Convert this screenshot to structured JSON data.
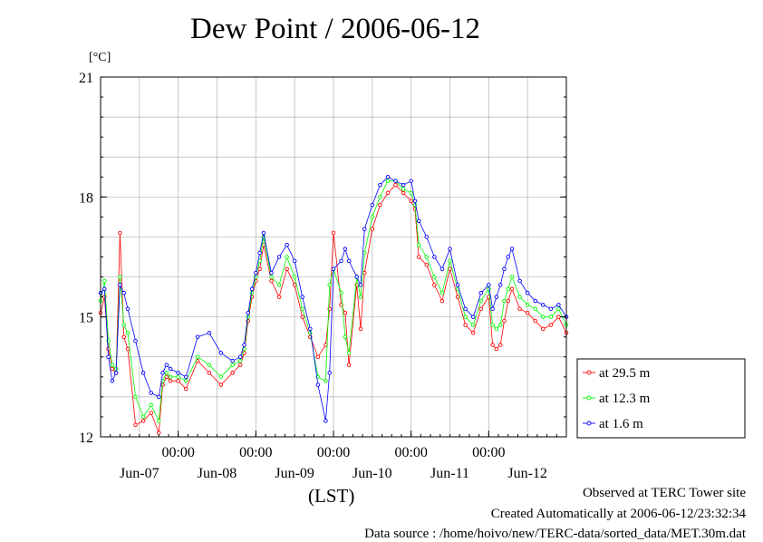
{
  "chart_data": {
    "type": "line",
    "title": "Dew Point / 2006-06-12",
    "ylabel": "[°C]",
    "xlabel": "(LST)",
    "ylim": [
      12,
      21
    ],
    "yticks": [
      "12",
      "15",
      "18",
      "21"
    ],
    "xlim_days": [
      0,
      6
    ],
    "midnight_labels": [
      "00:00",
      "00:00",
      "00:00",
      "00:00",
      "00:00"
    ],
    "day_labels": [
      "Jun-07",
      "Jun-08",
      "Jun-09",
      "Jun-10",
      "Jun-11",
      "Jun-12"
    ],
    "grid": true,
    "legend_position": "right",
    "series": [
      {
        "name": "at 29.5 m",
        "color": "#ff0000",
        "x": [
          0.0,
          0.05,
          0.1,
          0.15,
          0.2,
          0.25,
          0.3,
          0.35,
          0.45,
          0.55,
          0.65,
          0.75,
          0.8,
          0.85,
          0.9,
          1.0,
          1.1,
          1.25,
          1.4,
          1.55,
          1.7,
          1.8,
          1.85,
          1.9,
          1.95,
          2.0,
          2.05,
          2.1,
          2.2,
          2.3,
          2.4,
          2.5,
          2.6,
          2.7,
          2.8,
          2.9,
          2.95,
          3.0,
          3.1,
          3.15,
          3.2,
          3.3,
          3.35,
          3.4,
          3.5,
          3.6,
          3.7,
          3.8,
          3.9,
          4.0,
          4.05,
          4.1,
          4.2,
          4.3,
          4.4,
          4.5,
          4.6,
          4.7,
          4.8,
          4.9,
          5.0,
          5.05,
          5.1,
          5.15,
          5.2,
          5.25,
          5.3,
          5.4,
          5.5,
          5.6,
          5.7,
          5.8,
          5.9,
          6.0
        ],
        "y": [
          15.1,
          15.5,
          14.2,
          13.7,
          13.6,
          17.1,
          14.5,
          14.2,
          12.3,
          12.4,
          12.6,
          12.1,
          13.3,
          13.5,
          13.4,
          13.4,
          13.2,
          13.9,
          13.6,
          13.3,
          13.6,
          13.8,
          14.1,
          14.9,
          15.5,
          15.9,
          16.2,
          16.8,
          15.9,
          15.5,
          16.2,
          15.8,
          15.0,
          14.5,
          14.0,
          14.3,
          15.2,
          17.1,
          15.3,
          15.1,
          13.8,
          15.8,
          14.7,
          16.1,
          17.2,
          17.8,
          18.1,
          18.3,
          18.1,
          17.9,
          17.7,
          16.5,
          16.3,
          15.8,
          15.4,
          16.2,
          15.5,
          14.8,
          14.6,
          15.2,
          15.5,
          14.3,
          14.2,
          14.3,
          14.9,
          15.4,
          15.7,
          15.2,
          15.1,
          14.9,
          14.7,
          14.8,
          15.0,
          14.6
        ]
      },
      {
        "name": "at 12.3 m",
        "color": "#00ff00",
        "x": [
          0.0,
          0.05,
          0.1,
          0.15,
          0.2,
          0.25,
          0.3,
          0.35,
          0.45,
          0.55,
          0.65,
          0.75,
          0.8,
          0.85,
          0.9,
          1.0,
          1.1,
          1.25,
          1.4,
          1.55,
          1.7,
          1.8,
          1.85,
          1.9,
          1.95,
          2.0,
          2.05,
          2.1,
          2.2,
          2.3,
          2.4,
          2.5,
          2.6,
          2.7,
          2.8,
          2.9,
          2.95,
          3.0,
          3.1,
          3.15,
          3.2,
          3.3,
          3.35,
          3.4,
          3.5,
          3.6,
          3.7,
          3.8,
          3.9,
          4.0,
          4.05,
          4.1,
          4.2,
          4.3,
          4.4,
          4.5,
          4.6,
          4.7,
          4.8,
          4.9,
          5.0,
          5.05,
          5.1,
          5.15,
          5.2,
          5.25,
          5.3,
          5.4,
          5.5,
          5.6,
          5.7,
          5.8,
          5.9,
          6.0
        ],
        "y": [
          15.4,
          15.9,
          14.4,
          13.8,
          13.7,
          16.0,
          14.8,
          14.6,
          13.0,
          12.5,
          12.8,
          12.4,
          13.4,
          13.6,
          13.5,
          13.5,
          13.4,
          14.0,
          13.8,
          13.5,
          13.8,
          13.9,
          14.2,
          15.0,
          15.6,
          16.0,
          16.4,
          17.0,
          16.0,
          15.8,
          16.5,
          16.0,
          15.2,
          14.6,
          13.5,
          13.4,
          15.8,
          16.2,
          15.6,
          14.5,
          14.1,
          16.0,
          15.5,
          16.6,
          17.5,
          18.0,
          18.4,
          18.4,
          18.2,
          18.1,
          17.8,
          16.8,
          16.5,
          16.0,
          15.6,
          16.4,
          15.7,
          15.0,
          14.8,
          15.4,
          15.7,
          14.8,
          14.7,
          14.8,
          15.4,
          15.7,
          16.0,
          15.5,
          15.3,
          15.2,
          15.0,
          15.0,
          15.2,
          14.8
        ]
      },
      {
        "name": "at 1.6 m",
        "color": "#0000ff",
        "x": [
          0.0,
          0.05,
          0.1,
          0.15,
          0.2,
          0.25,
          0.3,
          0.35,
          0.45,
          0.55,
          0.65,
          0.75,
          0.8,
          0.85,
          0.9,
          1.0,
          1.1,
          1.25,
          1.4,
          1.55,
          1.7,
          1.8,
          1.85,
          1.9,
          1.95,
          2.0,
          2.05,
          2.1,
          2.2,
          2.3,
          2.4,
          2.5,
          2.6,
          2.7,
          2.8,
          2.9,
          2.95,
          3.0,
          3.1,
          3.15,
          3.2,
          3.3,
          3.35,
          3.4,
          3.5,
          3.6,
          3.7,
          3.8,
          3.9,
          4.0,
          4.05,
          4.1,
          4.2,
          4.3,
          4.4,
          4.5,
          4.6,
          4.7,
          4.8,
          4.9,
          5.0,
          5.05,
          5.1,
          5.15,
          5.2,
          5.25,
          5.3,
          5.4,
          5.5,
          5.6,
          5.7,
          5.8,
          5.9,
          6.0
        ],
        "y": [
          15.6,
          15.7,
          14.0,
          13.4,
          13.6,
          15.8,
          15.6,
          15.2,
          14.4,
          13.6,
          13.1,
          13.0,
          13.6,
          13.8,
          13.7,
          13.6,
          13.5,
          14.5,
          14.6,
          14.1,
          13.9,
          14.0,
          14.3,
          15.1,
          15.7,
          16.1,
          16.6,
          17.1,
          16.1,
          16.5,
          16.8,
          16.4,
          15.5,
          14.7,
          13.3,
          12.4,
          13.6,
          16.2,
          16.4,
          16.7,
          16.4,
          16.0,
          15.8,
          17.2,
          17.8,
          18.3,
          18.5,
          18.4,
          18.3,
          18.4,
          17.9,
          17.4,
          17.0,
          16.5,
          16.2,
          16.7,
          15.8,
          15.2,
          15.0,
          15.6,
          15.8,
          15.2,
          15.5,
          15.8,
          16.2,
          16.5,
          16.7,
          15.9,
          15.6,
          15.4,
          15.3,
          15.2,
          15.3,
          15.0
        ]
      }
    ]
  },
  "footer": {
    "site": "Observed at TERC Tower site",
    "created": "Created Automatically at 2006-06-12/23:32:34",
    "source": "Data source : /home/hoivo/new/TERC-data/sorted_data/MET.30m.dat"
  }
}
